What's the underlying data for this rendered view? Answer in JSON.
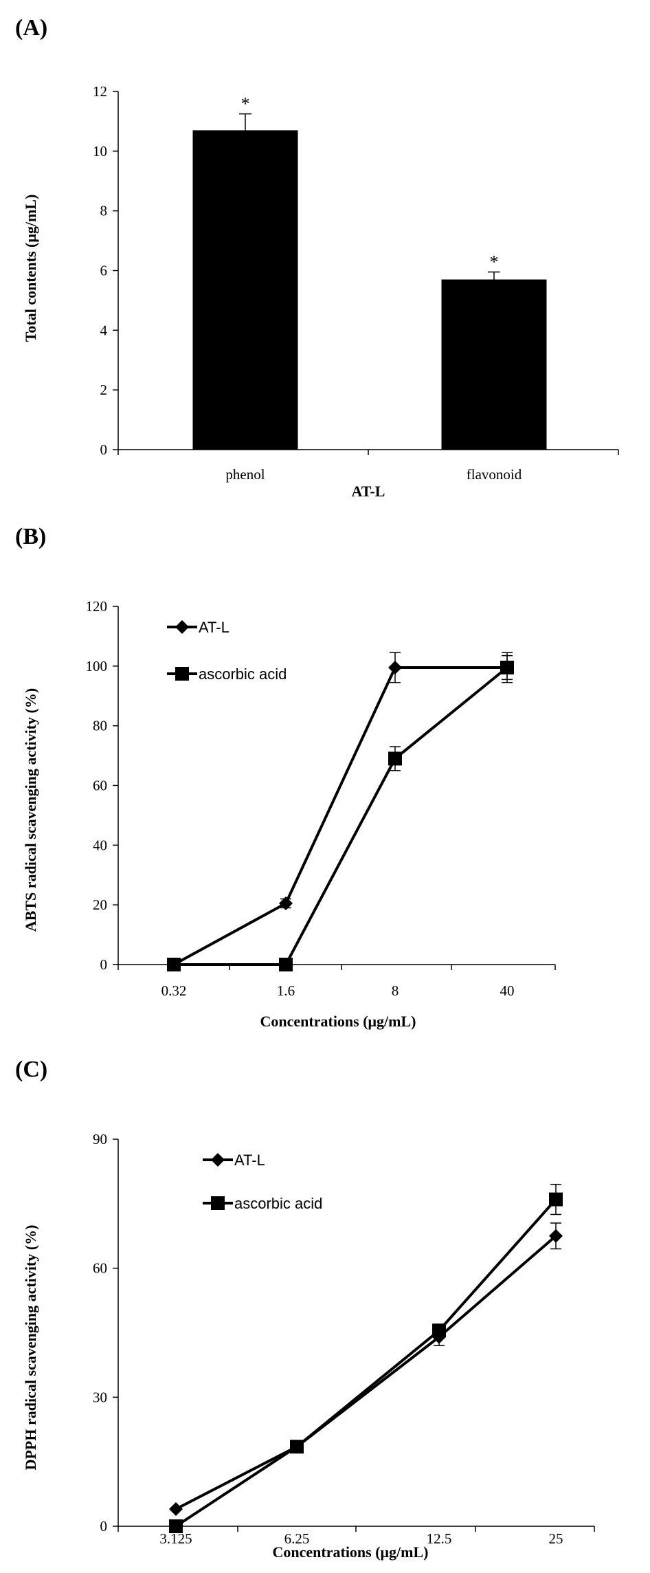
{
  "chart_data": [
    {
      "panel_label": "(A)",
      "type": "bar",
      "categories": [
        "phenol",
        "flavonoid"
      ],
      "values": [
        10.7,
        5.7
      ],
      "errors": [
        0.55,
        0.25
      ],
      "annotations": [
        "*",
        "*"
      ],
      "xlabel": "AT-L",
      "ylabel": "Total contents (μg/mL)",
      "ylim": [
        0,
        12
      ],
      "yticks": [
        "0",
        "2",
        "4",
        "6",
        "8",
        "10",
        "12"
      ],
      "grid": false,
      "bar_color": "#000000"
    },
    {
      "panel_label": "(B)",
      "type": "line",
      "x": [
        "0.32",
        "1.6",
        "8",
        "40"
      ],
      "series": [
        {
          "name": "AT-L",
          "marker": "diamond",
          "values": [
            0,
            20.5,
            99.5,
            99.5
          ],
          "errors": [
            0,
            1.5,
            5,
            4
          ]
        },
        {
          "name": "ascorbic acid",
          "marker": "square",
          "values": [
            0,
            0,
            69,
            99.5
          ],
          "errors": [
            0,
            0,
            4,
            5
          ]
        }
      ],
      "xlabel": "Concentrations  (μg/mL)",
      "ylabel": "ABTS radical scavenging activity  (%)",
      "ylim": [
        0,
        120
      ],
      "yticks": [
        "0",
        "20",
        "40",
        "60",
        "80",
        "100",
        "120"
      ],
      "grid": false,
      "legend_position": "top-left"
    },
    {
      "panel_label": "(C)",
      "type": "line",
      "x": [
        "3.125",
        "6.25",
        "12.5",
        "25"
      ],
      "series": [
        {
          "name": "AT-L",
          "marker": "diamond",
          "values": [
            4,
            18.5,
            44,
            67.5
          ],
          "errors": [
            0,
            0,
            2,
            3
          ]
        },
        {
          "name": "ascorbic acid",
          "marker": "square",
          "values": [
            0,
            18.5,
            45.5,
            76
          ],
          "errors": [
            0,
            0,
            1.5,
            3.5
          ]
        }
      ],
      "xlabel": "Concentrations  (μg/mL)",
      "ylabel": "DPPH radical scavenging activity  (%)",
      "ylim": [
        0,
        90
      ],
      "yticks": [
        "0",
        "30",
        "60",
        "90"
      ],
      "grid": false,
      "legend_position": "top-left"
    }
  ]
}
